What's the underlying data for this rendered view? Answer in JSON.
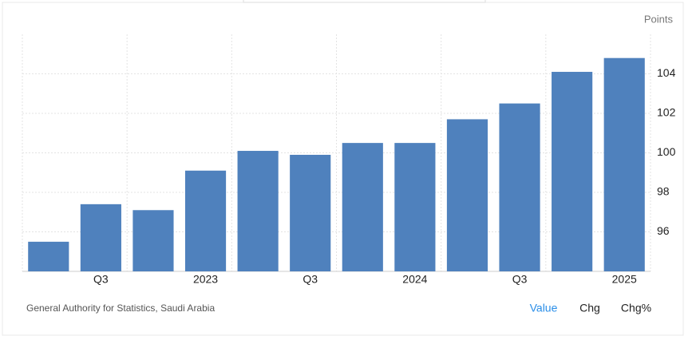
{
  "chart_data": {
    "type": "bar",
    "y_label": "Points",
    "categories": [
      null,
      "Q3",
      null,
      "2023",
      null,
      "Q3",
      null,
      "2024",
      null,
      "Q3",
      null,
      "2025"
    ],
    "values": [
      95.5,
      97.4,
      97.1,
      99.1,
      100.1,
      99.9,
      100.5,
      100.5,
      101.7,
      102.5,
      104.1,
      104.8
    ],
    "color": "#4f81bd",
    "ylim": [
      94,
      106
    ],
    "yticks": [
      96,
      98,
      100,
      102,
      104
    ],
    "grid": true,
    "y_axis_side": "right"
  },
  "footer": {
    "source": "General Authority for Statistics, Saudi Arabia",
    "tabs": [
      "Value",
      "Chg",
      "Chg%"
    ],
    "active_tab": 0
  }
}
